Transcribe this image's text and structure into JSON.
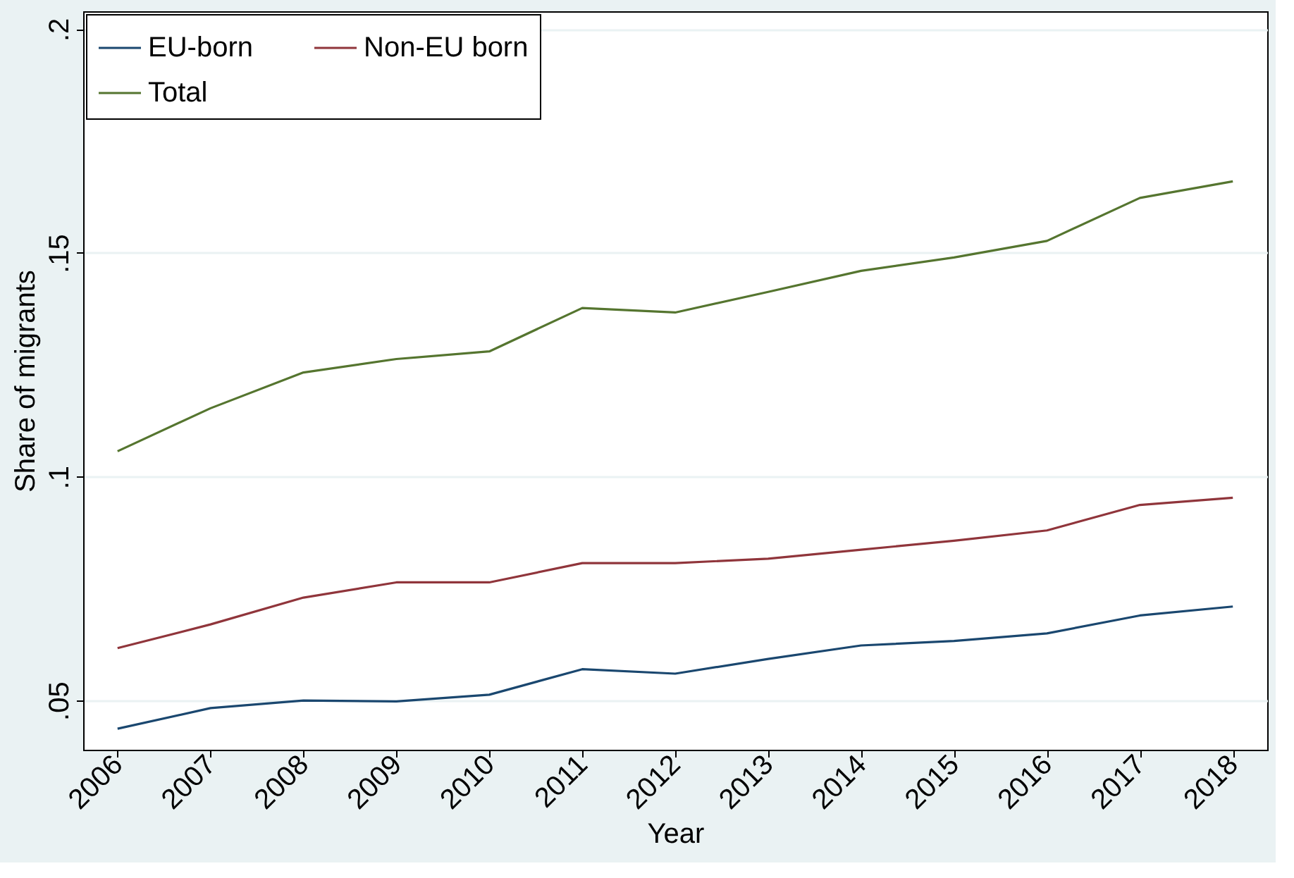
{
  "chart_data": {
    "type": "line",
    "xlabel": "Year",
    "ylabel": "Share of migrants",
    "x": [
      2006,
      2007,
      2008,
      2009,
      2010,
      2011,
      2012,
      2013,
      2014,
      2015,
      2016,
      2017,
      2018
    ],
    "series": [
      {
        "name": "EU-born",
        "color": "#1a476f",
        "values": [
          0.0437,
          0.0483,
          0.05,
          0.0498,
          0.0513,
          0.057,
          0.056,
          0.0593,
          0.0623,
          0.0633,
          0.065,
          0.069,
          0.071
        ]
      },
      {
        "name": "Non-EU born",
        "color": "#90353b",
        "values": [
          0.0617,
          0.067,
          0.073,
          0.0764,
          0.0764,
          0.0807,
          0.0807,
          0.0817,
          0.0837,
          0.0857,
          0.088,
          0.0937,
          0.0953
        ]
      },
      {
        "name": "Total",
        "color": "#55752f",
        "values": [
          0.1057,
          0.1153,
          0.1233,
          0.1263,
          0.128,
          0.1377,
          0.1367,
          0.1413,
          0.146,
          0.149,
          0.1527,
          0.1623,
          0.166
        ]
      }
    ],
    "xlim": [
      2005.63,
      2018.37
    ],
    "xticks": [
      2006,
      2007,
      2008,
      2009,
      2010,
      2011,
      2012,
      2013,
      2014,
      2015,
      2016,
      2017,
      2018
    ],
    "ylim": [
      0.039,
      0.204
    ],
    "yticks": [
      {
        "value": 0.05,
        "label": ".05"
      },
      {
        "value": 0.1,
        "label": ".1"
      },
      {
        "value": 0.15,
        "label": ".15"
      },
      {
        "value": 0.2,
        "label": ".2"
      }
    ],
    "grid": "y",
    "legend": "top left",
    "marker": "none",
    "line_style": "solid"
  }
}
